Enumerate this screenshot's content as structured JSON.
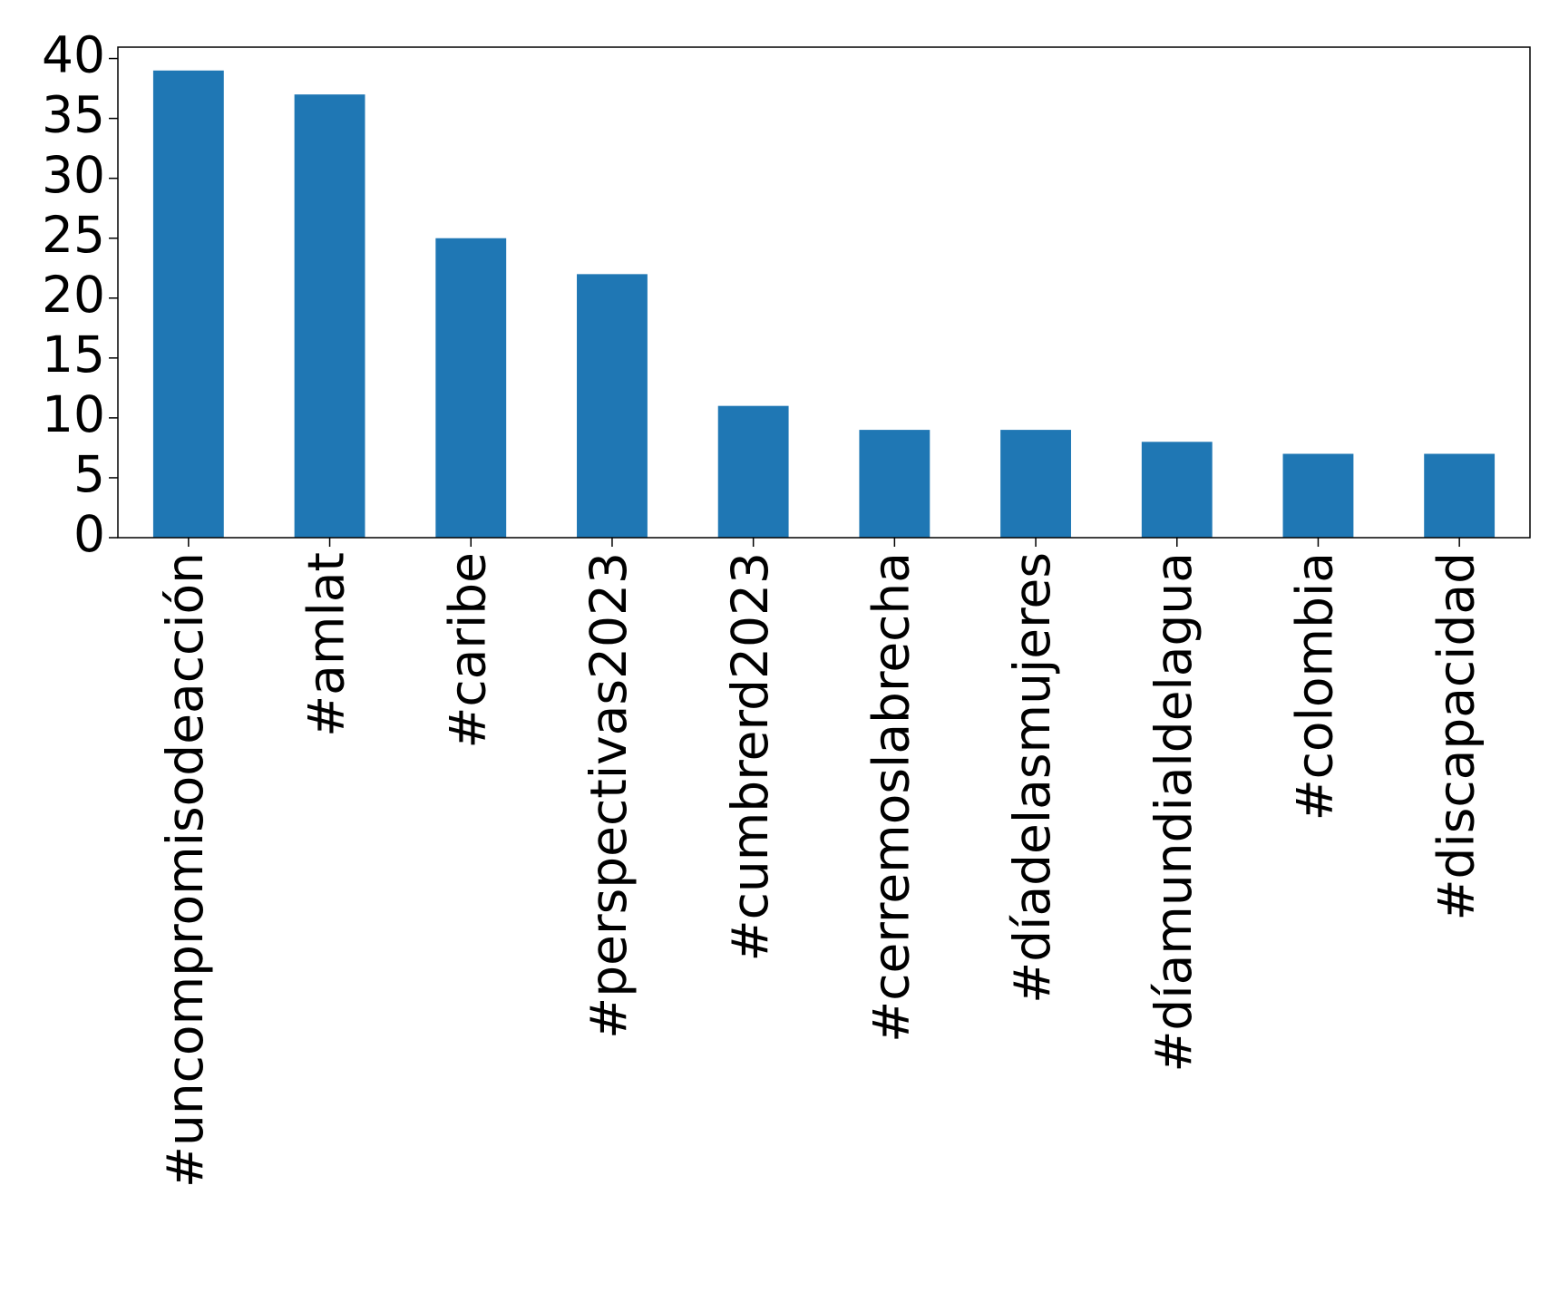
{
  "chart_data": {
    "type": "bar",
    "categories": [
      "#uncompromisodeacción",
      "#amlat",
      "#caribe",
      "#perspectivas2023",
      "#cumbrerd2023",
      "#cerremoslabrecha",
      "#díadelasmujeres",
      "#díamundialdelagua",
      "#colombia",
      "#discapacidad"
    ],
    "values": [
      39,
      37,
      25,
      22,
      11,
      9,
      9,
      8,
      7,
      7
    ],
    "color": "#1f77b4",
    "ylim": [
      0,
      40.95
    ],
    "yticks": [
      0,
      5,
      10,
      15,
      20,
      25,
      30,
      35,
      40
    ],
    "grid": false
  }
}
